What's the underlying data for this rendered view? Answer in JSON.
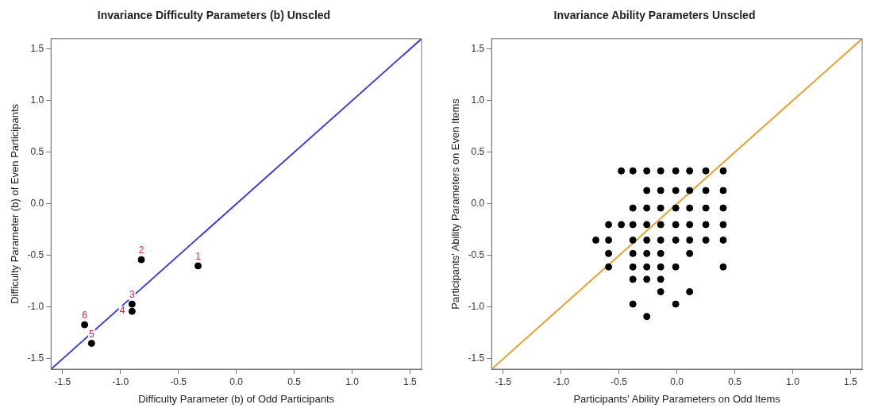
{
  "chart_data": [
    {
      "type": "scatter",
      "title": "Invariance Difficulty Parameters (b) Unscled",
      "xlabel": "Difficulty Parameter (b) of Odd Participants",
      "ylabel": "Difficulty Parameter (b) of Even Participants",
      "xlim": [
        -1.6,
        1.6
      ],
      "ylim": [
        -1.6,
        1.6
      ],
      "xticks": [
        -1.5,
        {
          "value": -1,
          "label": "-1.0"
        },
        -0.5,
        {
          "value": 0,
          "label": "0.0"
        },
        0.5,
        {
          "value": 1,
          "label": "1.0"
        },
        1.5
      ],
      "yticks": [
        -1.5,
        {
          "value": -1,
          "label": "-1.0"
        },
        -0.5,
        {
          "value": 0,
          "label": "0.0"
        },
        0.5,
        {
          "value": 1,
          "label": "1.0"
        },
        1.5
      ],
      "grid": false,
      "legend": false,
      "series": [
        {
          "color": "#000000",
          "marker": "circle",
          "x": [
            -0.33,
            -0.82,
            -0.9,
            -0.9,
            -1.25,
            -1.31
          ],
          "values": [
            -0.6,
            -0.54,
            -0.97,
            -1.04,
            -1.35,
            -1.17
          ]
        },
        {
          "type": "line",
          "marker": "none",
          "color": "#3c3ce0",
          "x": [
            -1.6,
            1.6
          ],
          "values": [
            -1.6,
            1.6
          ]
        }
      ],
      "annotations": [
        {
          "text": "1",
          "x": -0.33,
          "y": -0.6
        },
        {
          "text": "2",
          "x": -0.82,
          "y": -0.54
        },
        {
          "text": "3",
          "x": -0.9,
          "y": -0.97
        },
        {
          "text": "4",
          "x": -0.9,
          "y": -1.04
        },
        {
          "text": "5",
          "x": -1.25,
          "y": -1.35
        },
        {
          "text": "6",
          "x": -1.31,
          "y": -1.17
        }
      ]
    },
    {
      "type": "scatter",
      "title": "Invariance Ability Parameters Unscled",
      "xlabel": "Participants' Ability Parameters on Odd Items",
      "ylabel": "Participants' Ability Parameters on Even Items",
      "xlim": [
        -1.6,
        1.6
      ],
      "ylim": [
        -1.6,
        1.6
      ],
      "xticks": [
        -1.5,
        {
          "value": -1,
          "label": "-1.0"
        },
        -0.5,
        {
          "value": 0,
          "label": "0.0"
        },
        0.5,
        {
          "value": 1,
          "label": "1.0"
        },
        1.5
      ],
      "yticks": [
        -1.5,
        {
          "value": -1,
          "label": "-1.0"
        },
        -0.5,
        {
          "value": 0,
          "label": "0.0"
        },
        0.5,
        {
          "value": 1,
          "label": "1.0"
        },
        1.5
      ],
      "grid": false,
      "legend": false,
      "series": [
        {
          "color": "#000000",
          "marker": "circle",
          "x": [
            -0.48,
            -0.38,
            -0.26,
            -0.14,
            -0.01,
            0.11,
            0.25,
            0.4,
            -0.26,
            -0.14,
            -0.01,
            0.11,
            0.25,
            0.4,
            -0.38,
            -0.26,
            -0.14,
            -0.01,
            0.11,
            0.25,
            0.4,
            -0.59,
            -0.48,
            -0.38,
            -0.26,
            -0.14,
            -0.01,
            0.11,
            0.25,
            0.4,
            -0.7,
            -0.59,
            -0.38,
            -0.26,
            -0.14,
            -0.01,
            0.11,
            0.25,
            0.4,
            -0.59,
            -0.38,
            -0.26,
            -0.14,
            0.11,
            -0.59,
            -0.38,
            -0.26,
            -0.14,
            -0.01,
            0.4,
            -0.38,
            -0.26,
            -0.14,
            -0.14,
            0.11,
            -0.38,
            -0.01,
            -0.26
          ],
          "values": [
            0.32,
            0.32,
            0.32,
            0.32,
            0.32,
            0.32,
            0.32,
            0.32,
            0.13,
            0.13,
            0.13,
            0.13,
            0.13,
            0.13,
            -0.04,
            -0.04,
            -0.04,
            -0.04,
            -0.04,
            -0.04,
            -0.04,
            -0.2,
            -0.2,
            -0.2,
            -0.2,
            -0.2,
            -0.2,
            -0.2,
            -0.2,
            -0.2,
            -0.35,
            -0.35,
            -0.35,
            -0.35,
            -0.35,
            -0.35,
            -0.35,
            -0.35,
            -0.35,
            -0.48,
            -0.48,
            -0.48,
            -0.48,
            -0.48,
            -0.61,
            -0.61,
            -0.61,
            -0.61,
            -0.61,
            -0.61,
            -0.73,
            -0.73,
            -0.73,
            -0.85,
            -0.85,
            -0.97,
            -0.97,
            -1.09
          ]
        },
        {
          "type": "line",
          "marker": "none",
          "color": "#e8a032",
          "x": [
            -1.6,
            1.6
          ],
          "values": [
            -1.6,
            1.6
          ]
        }
      ]
    }
  ]
}
